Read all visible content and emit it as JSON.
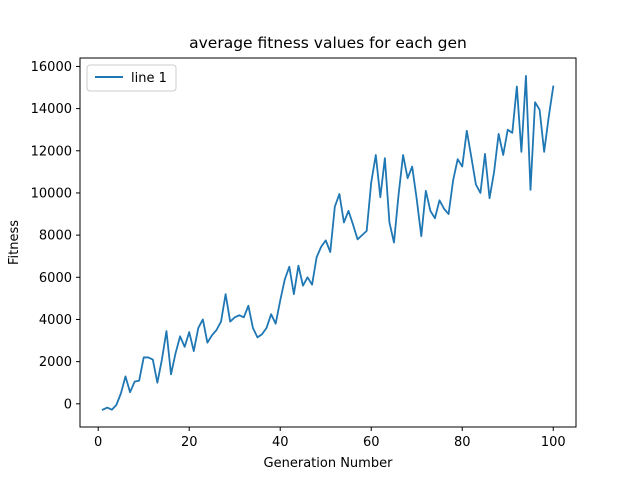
{
  "chart_data": {
    "type": "line",
    "title": "average fitness values for each gen",
    "xlabel": "Generation Number",
    "ylabel": "Fitness",
    "xlim": [
      -4,
      105
    ],
    "ylim": [
      -1100,
      16400
    ],
    "xticks": [
      0,
      20,
      40,
      60,
      80,
      100
    ],
    "yticks": [
      0,
      2000,
      4000,
      6000,
      8000,
      10000,
      12000,
      14000,
      16000
    ],
    "grid": false,
    "legend_position": "top-left",
    "series": [
      {
        "name": "line 1",
        "color": "#1f77b4",
        "x": [
          1,
          2,
          3,
          4,
          5,
          6,
          7,
          8,
          9,
          10,
          11,
          12,
          13,
          14,
          15,
          16,
          17,
          18,
          19,
          20,
          21,
          22,
          23,
          24,
          25,
          26,
          27,
          28,
          29,
          30,
          31,
          32,
          33,
          34,
          35,
          36,
          37,
          38,
          39,
          40,
          41,
          42,
          43,
          44,
          45,
          46,
          47,
          48,
          49,
          50,
          51,
          52,
          53,
          54,
          55,
          56,
          57,
          58,
          59,
          60,
          61,
          62,
          63,
          64,
          65,
          66,
          67,
          68,
          69,
          70,
          71,
          72,
          73,
          74,
          75,
          76,
          77,
          78,
          79,
          80,
          81,
          82,
          83,
          84,
          85,
          86,
          87,
          88,
          89,
          90,
          91,
          92,
          93,
          94,
          95,
          96,
          97,
          98,
          99,
          100
        ],
        "values": [
          -280,
          -180,
          -280,
          -50,
          500,
          1300,
          550,
          1050,
          1100,
          2200,
          2200,
          2100,
          1000,
          2100,
          3450,
          1400,
          2400,
          3200,
          2700,
          3400,
          2500,
          3600,
          4000,
          2900,
          3250,
          3500,
          3900,
          5200,
          3900,
          4100,
          4200,
          4100,
          4650,
          3600,
          3150,
          3300,
          3600,
          4250,
          3800,
          4900,
          5900,
          6500,
          5200,
          6550,
          5600,
          6000,
          5650,
          6950,
          7450,
          7750,
          7200,
          9350,
          9950,
          8600,
          9150,
          8500,
          7800,
          8000,
          8200,
          10500,
          11800,
          9800,
          11650,
          8600,
          7650,
          9900,
          11800,
          10700,
          11250,
          9700,
          7950,
          10100,
          9150,
          8800,
          9650,
          9250,
          9000,
          10600,
          11600,
          11250,
          12950,
          11700,
          10400,
          10000,
          11850,
          9750,
          11000,
          12800,
          11800,
          13000,
          12850,
          15050,
          11950,
          15550,
          10150,
          14300,
          13950,
          11950,
          13600,
          15050
        ]
      }
    ]
  }
}
